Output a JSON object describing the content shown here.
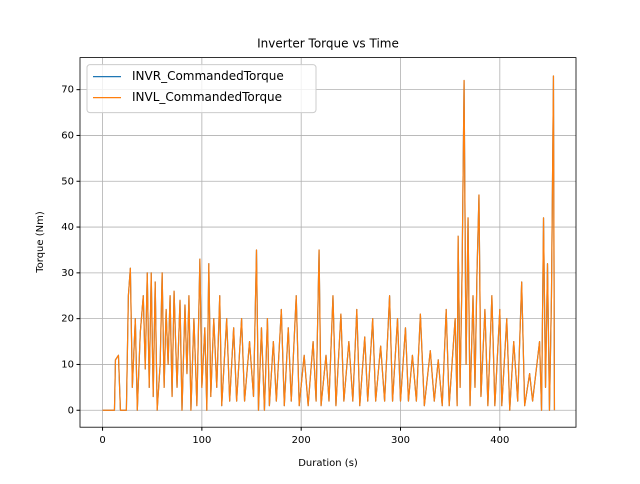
{
  "chart_data": {
    "type": "line",
    "title": "Inverter Torque vs Time",
    "xlabel": "Duration (s)",
    "ylabel": "Torque (Nm)",
    "x": [
      0,
      10,
      12,
      13,
      16,
      18,
      24,
      26,
      28,
      30,
      33,
      35,
      38,
      41,
      43,
      45,
      47,
      49,
      51,
      53,
      55,
      58,
      60,
      62,
      64,
      66,
      68,
      70,
      72,
      75,
      78,
      80,
      83,
      85,
      87,
      89,
      92,
      95,
      98,
      100,
      103,
      105,
      107,
      109,
      112,
      115,
      118,
      120,
      125,
      128,
      132,
      135,
      140,
      143,
      148,
      152,
      155,
      157,
      160,
      163,
      166,
      168,
      172,
      175,
      180,
      183,
      187,
      190,
      195,
      198,
      203,
      207,
      212,
      215,
      218,
      220,
      225,
      228,
      232,
      235,
      240,
      243,
      248,
      252,
      256,
      259,
      264,
      267,
      272,
      275,
      280,
      284,
      289,
      292,
      297,
      300,
      305,
      308,
      312,
      316,
      320,
      324,
      330,
      334,
      338,
      342,
      346,
      349,
      355,
      357,
      358,
      360,
      362,
      364,
      366,
      368,
      370,
      373,
      375,
      377,
      379,
      381,
      385,
      388,
      392,
      395,
      400,
      402,
      407,
      410,
      414,
      418,
      422,
      425,
      430,
      433,
      440,
      442,
      444,
      446,
      448,
      450,
      452,
      454,
      455
    ],
    "series": [
      {
        "name": "INVR_CommandedTorque",
        "color": "#1f77b4",
        "values": [
          0,
          0,
          0,
          11,
          12,
          0,
          0,
          25,
          31,
          5,
          20,
          0,
          17,
          25,
          9,
          30,
          5,
          30,
          3,
          28,
          0,
          10,
          30,
          5,
          22,
          10,
          25,
          3,
          26,
          5,
          24,
          0,
          23,
          8,
          25,
          0,
          20,
          1,
          33,
          5,
          18,
          0,
          32,
          3,
          20,
          5,
          25,
          1,
          20,
          2,
          18,
          2,
          20,
          2,
          15,
          3,
          35,
          0,
          18,
          0,
          20,
          1,
          15,
          2,
          22,
          1,
          18,
          2,
          25,
          1,
          12,
          1,
          15,
          2,
          35,
          1,
          12,
          2,
          25,
          1,
          21,
          2,
          15,
          2,
          22,
          1,
          16,
          2,
          20,
          2,
          14,
          2,
          25,
          2,
          20,
          2,
          18,
          2,
          12,
          2,
          21,
          1,
          13,
          2,
          11,
          1,
          22,
          1,
          20,
          1,
          38,
          5,
          30,
          72,
          10,
          42,
          1,
          25,
          5,
          30,
          47,
          3,
          22,
          1,
          25,
          1,
          22,
          1,
          20,
          0,
          15,
          2,
          28,
          1,
          8,
          2,
          15,
          0,
          42,
          5,
          32,
          0,
          25,
          73,
          0
        ]
      },
      {
        "name": "INVL_CommandedTorque",
        "color": "#ff7f0e",
        "values": [
          0,
          0,
          0,
          11,
          12,
          0,
          0,
          25,
          31,
          5,
          20,
          0,
          17,
          25,
          9,
          30,
          5,
          30,
          3,
          28,
          0,
          10,
          30,
          5,
          22,
          10,
          25,
          3,
          26,
          5,
          24,
          0,
          23,
          8,
          25,
          0,
          20,
          1,
          33,
          5,
          18,
          0,
          32,
          3,
          20,
          5,
          25,
          1,
          20,
          2,
          18,
          2,
          20,
          2,
          15,
          3,
          35,
          0,
          18,
          0,
          20,
          1,
          15,
          2,
          22,
          1,
          18,
          2,
          25,
          1,
          12,
          1,
          15,
          2,
          35,
          1,
          12,
          2,
          25,
          1,
          21,
          2,
          15,
          2,
          22,
          1,
          16,
          2,
          20,
          2,
          14,
          2,
          25,
          2,
          20,
          2,
          18,
          2,
          12,
          2,
          21,
          1,
          13,
          2,
          11,
          1,
          22,
          1,
          20,
          1,
          38,
          5,
          30,
          72,
          10,
          42,
          1,
          25,
          5,
          30,
          47,
          3,
          22,
          1,
          25,
          1,
          22,
          1,
          20,
          0,
          15,
          2,
          28,
          1,
          8,
          2,
          15,
          0,
          42,
          5,
          32,
          0,
          25,
          73,
          0
        ]
      }
    ],
    "xlim": [
      -22.7,
      476.7
    ],
    "ylim": [
      -3.7,
      77.0
    ],
    "xticks": [
      0,
      100,
      200,
      300,
      400
    ],
    "yticks": [
      0,
      10,
      20,
      30,
      40,
      50,
      60,
      70
    ],
    "grid": true,
    "legend": "upper left"
  }
}
